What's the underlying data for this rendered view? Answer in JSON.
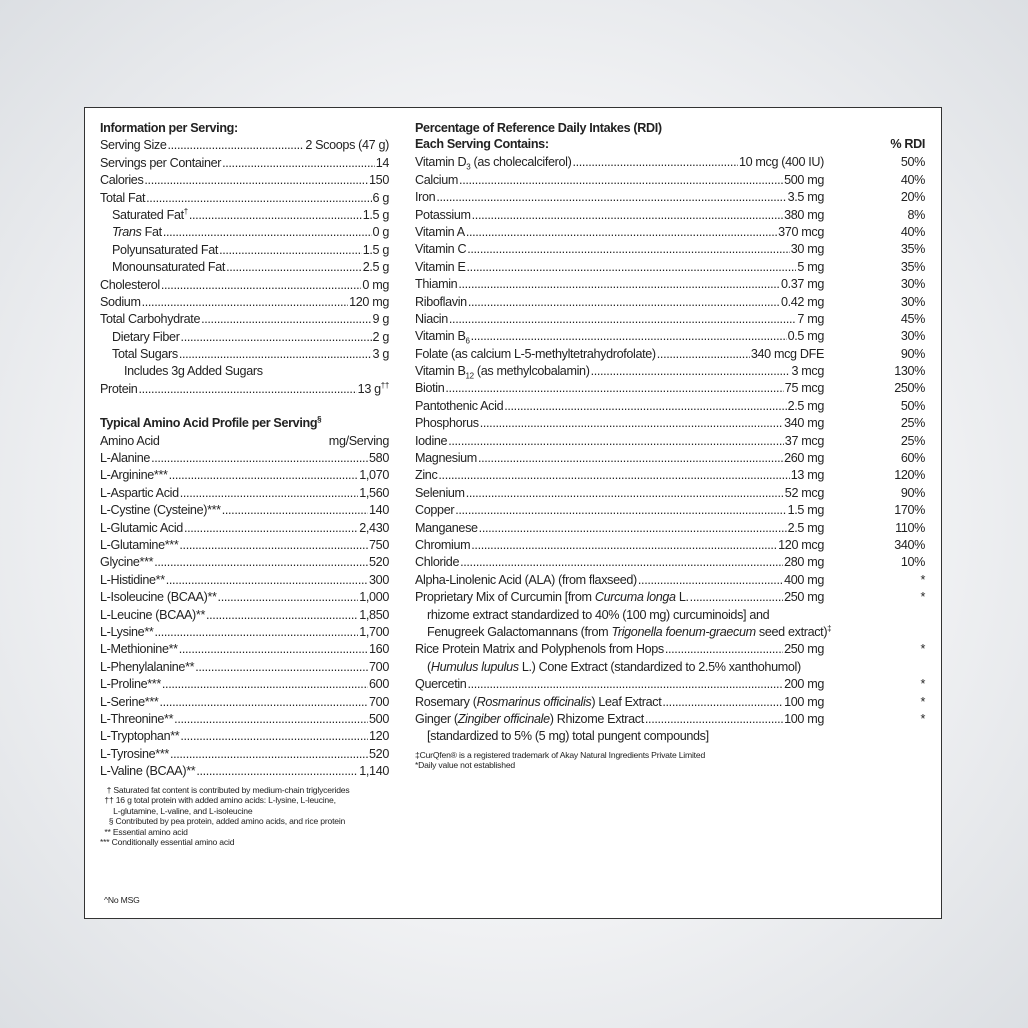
{
  "left": {
    "info_title": "Information per Serving:",
    "rows": [
      {
        "label": [
          {
            "t": "Serving Size"
          }
        ],
        "value": "2 Scoops (47 g)",
        "indent": 0
      },
      {
        "label": [
          {
            "t": "Servings per Container"
          }
        ],
        "value": "14",
        "indent": 0
      },
      {
        "label": [
          {
            "t": "Calories"
          }
        ],
        "value": "150",
        "indent": 0
      },
      {
        "label": [
          {
            "t": "Total Fat"
          }
        ],
        "value": "6 g",
        "indent": 0
      },
      {
        "label": [
          {
            "t": "Saturated Fat"
          },
          {
            "t": "†",
            "f": "sup"
          }
        ],
        "value": "1.5 g",
        "indent": 1
      },
      {
        "label": [
          {
            "t": "Trans",
            "f": "i"
          },
          {
            "t": " Fat"
          }
        ],
        "value": "0 g",
        "indent": 1
      },
      {
        "label": [
          {
            "t": "Polyunsaturated Fat"
          }
        ],
        "value": "1.5 g",
        "indent": 1
      },
      {
        "label": [
          {
            "t": "Monounsaturated Fat"
          }
        ],
        "value": "2.5 g",
        "indent": 1
      },
      {
        "label": [
          {
            "t": "Cholesterol"
          }
        ],
        "value": "0 mg",
        "indent": 0
      },
      {
        "label": [
          {
            "t": "Sodium"
          }
        ],
        "value": "120 mg",
        "indent": 0
      },
      {
        "label": [
          {
            "t": "Total Carbohydrate"
          }
        ],
        "value": "9 g",
        "indent": 0
      },
      {
        "label": [
          {
            "t": "Dietary Fiber"
          }
        ],
        "value": "2 g",
        "indent": 1
      },
      {
        "label": [
          {
            "t": "Total Sugars"
          }
        ],
        "value": "3 g",
        "indent": 1
      },
      {
        "label": [
          {
            "t": "Includes 3g Added Sugars"
          }
        ],
        "value": null,
        "indent": 2
      },
      {
        "label": [
          {
            "t": "Protein"
          }
        ],
        "value": "13 g",
        "value_sup": "††",
        "indent": 0
      }
    ],
    "amino_title": "Typical Amino Acid Profile per Serving",
    "amino_title_sup": "§",
    "amino_col1": "Amino Acid",
    "amino_col2": "mg/Serving",
    "amino": [
      {
        "name": "L-Alanine",
        "value": "580"
      },
      {
        "name": "L-Arginine***",
        "value": "1,070"
      },
      {
        "name": "L-Aspartic Acid",
        "value": "1,560"
      },
      {
        "name": "L-Cystine (Cysteine)***",
        "value": "140"
      },
      {
        "name": "L-Glutamic Acid",
        "value": "2,430"
      },
      {
        "name": "L-Glutamine***",
        "value": "750"
      },
      {
        "name": "Glycine***",
        "value": "520"
      },
      {
        "name": "L-Histidine**",
        "value": "300"
      },
      {
        "name": "L-Isoleucine (BCAA)**",
        "value": "1,000"
      },
      {
        "name": "L-Leucine (BCAA)**",
        "value": "1,850"
      },
      {
        "name": "L-Lysine**",
        "value": "1,700"
      },
      {
        "name": "L-Methionine**",
        "value": "160"
      },
      {
        "name": "L-Phenylalanine**",
        "value": "700"
      },
      {
        "name": "L-Proline***",
        "value": "600"
      },
      {
        "name": "L-Serine***",
        "value": "700"
      },
      {
        "name": "L-Threonine**",
        "value": "500"
      },
      {
        "name": "L-Tryptophan**",
        "value": "120"
      },
      {
        "name": "L-Tyrosine***",
        "value": "520"
      },
      {
        "name": "L-Valine (BCAA)**",
        "value": "1,140"
      }
    ],
    "footnotes": [
      "   † Saturated fat content is contributed by medium-chain triglycerides",
      "  †† 16 g total protein with added amino acids: L-lysine, L-leucine,",
      "      L-glutamine, L-valine, and L-isoleucine",
      "    § Contributed by pea protein, added amino acids, and rice protein",
      "  ** Essential amino acid",
      "*** Conditionally essential amino acid"
    ],
    "no_msg": "^No MSG"
  },
  "right": {
    "title1": "Percentage of Reference Daily Intakes (RDI)",
    "title2": "Each Serving Contains:",
    "rdi_header": "% RDI",
    "rows": [
      {
        "label": [
          {
            "t": "Vitamin D"
          },
          {
            "t": "3",
            "f": "sub"
          },
          {
            "t": " (as cholecalciferol)"
          }
        ],
        "amount": "10 mcg (400 IU)",
        "rdi": "50%"
      },
      {
        "label": [
          {
            "t": "Calcium"
          }
        ],
        "amount": "500 mg",
        "rdi": "40%"
      },
      {
        "label": [
          {
            "t": "Iron"
          }
        ],
        "amount": "3.5 mg",
        "rdi": "20%"
      },
      {
        "label": [
          {
            "t": "Potassium"
          }
        ],
        "amount": "380 mg",
        "rdi": "8%"
      },
      {
        "label": [
          {
            "t": "Vitamin A"
          }
        ],
        "amount": "370 mcg",
        "rdi": "40%"
      },
      {
        "label": [
          {
            "t": "Vitamin C"
          }
        ],
        "amount": "30 mg",
        "rdi": "35%"
      },
      {
        "label": [
          {
            "t": "Vitamin E"
          }
        ],
        "amount": "5 mg",
        "rdi": "35%"
      },
      {
        "label": [
          {
            "t": "Thiamin"
          }
        ],
        "amount": "0.37 mg",
        "rdi": "30%"
      },
      {
        "label": [
          {
            "t": "Riboflavin"
          }
        ],
        "amount": "0.42 mg",
        "rdi": "30%"
      },
      {
        "label": [
          {
            "t": "Niacin"
          }
        ],
        "amount": "7 mg",
        "rdi": "45%"
      },
      {
        "label": [
          {
            "t": "Vitamin B"
          },
          {
            "t": "6",
            "f": "sub"
          }
        ],
        "amount": "0.5 mg",
        "rdi": "30%"
      },
      {
        "label": [
          {
            "t": "Folate (as calcium L-5-methyltetrahydrofolate)"
          }
        ],
        "amount": "340 mcg DFE",
        "rdi": "90%"
      },
      {
        "label": [
          {
            "t": "Vitamin B"
          },
          {
            "t": "12",
            "f": "sub"
          },
          {
            "t": " (as methylcobalamin)"
          }
        ],
        "amount": "3 mcg",
        "rdi": "130%"
      },
      {
        "label": [
          {
            "t": "Biotin"
          }
        ],
        "amount": "75 mcg",
        "rdi": "250%"
      },
      {
        "label": [
          {
            "t": "Pantothenic Acid"
          }
        ],
        "amount": "2.5 mg",
        "rdi": "50%"
      },
      {
        "label": [
          {
            "t": "Phosphorus"
          }
        ],
        "amount": "340 mg",
        "rdi": "25%"
      },
      {
        "label": [
          {
            "t": "Iodine"
          }
        ],
        "amount": "37 mcg",
        "rdi": "25%"
      },
      {
        "label": [
          {
            "t": "Magnesium"
          }
        ],
        "amount": "260 mg",
        "rdi": "60%"
      },
      {
        "label": [
          {
            "t": "Zinc"
          }
        ],
        "amount": "13 mg",
        "rdi": "120%"
      },
      {
        "label": [
          {
            "t": "Selenium"
          }
        ],
        "amount": "52 mcg",
        "rdi": "90%"
      },
      {
        "label": [
          {
            "t": "Copper"
          }
        ],
        "amount": "1.5 mg",
        "rdi": "170%"
      },
      {
        "label": [
          {
            "t": "Manganese"
          }
        ],
        "amount": "2.5 mg",
        "rdi": "110%"
      },
      {
        "label": [
          {
            "t": "Chromium"
          }
        ],
        "amount": "120 mcg",
        "rdi": "340%"
      },
      {
        "label": [
          {
            "t": "Chloride"
          }
        ],
        "amount": "280 mg",
        "rdi": "10%"
      },
      {
        "label": [
          {
            "t": "Alpha-Linolenic Acid (ALA) (from flaxseed)"
          }
        ],
        "amount": "400 mg",
        "rdi": "*"
      },
      {
        "label": [
          {
            "t": "Proprietary Mix of Curcumin [from "
          },
          {
            "t": "Curcuma longa",
            "f": "i"
          },
          {
            "t": " L."
          }
        ],
        "amount": "250 mg",
        "rdi": "*",
        "cont": [
          [
            {
              "t": "rhizome extract standardized to 40% (100 mg) curcuminoids] and"
            }
          ],
          [
            {
              "t": "Fenugreek Galactomannans (from "
            },
            {
              "t": "Trigonella foenum-graecum",
              "f": "i"
            },
            {
              "t": " seed extract)"
            },
            {
              "t": "‡",
              "f": "sup"
            }
          ]
        ]
      },
      {
        "label": [
          {
            "t": "Rice Protein Matrix and Polyphenols from Hops"
          }
        ],
        "amount": "250 mg",
        "rdi": "*",
        "cont": [
          [
            {
              "t": "("
            },
            {
              "t": "Humulus lupulus",
              "f": "i"
            },
            {
              "t": " L.) Cone Extract (standardized to 2.5% xanthohumol)"
            }
          ]
        ]
      },
      {
        "label": [
          {
            "t": "Quercetin"
          }
        ],
        "amount": "200 mg",
        "rdi": "*"
      },
      {
        "label": [
          {
            "t": "Rosemary ("
          },
          {
            "t": "Rosmarinus officinalis",
            "f": "i"
          },
          {
            "t": ") Leaf Extract"
          }
        ],
        "amount": "100 mg",
        "rdi": "*"
      },
      {
        "label": [
          {
            "t": "Ginger ("
          },
          {
            "t": "Zingiber officinale",
            "f": "i"
          },
          {
            "t": ") Rhizome Extract"
          }
        ],
        "amount": "100 mg",
        "rdi": "*",
        "cont": [
          [
            {
              "t": "[standardized to 5% (5 mg) total pungent compounds]"
            }
          ]
        ]
      }
    ],
    "footnotes": [
      "‡CurQfen® is a registered trademark of Akay Natural Ingredients Private Limited",
      "*Daily value not established"
    ]
  }
}
